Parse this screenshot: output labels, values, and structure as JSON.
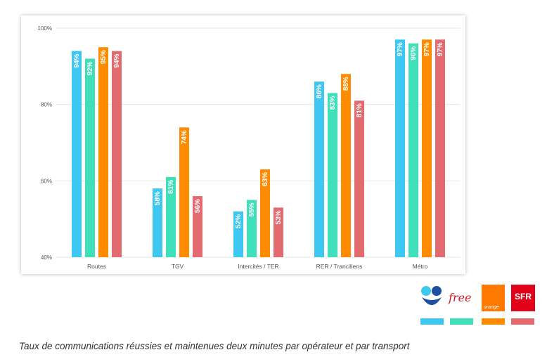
{
  "chart_data": {
    "type": "bar",
    "title": "",
    "xlabel": "",
    "ylabel": "",
    "categories": [
      "Routes",
      "TGV",
      "Intercités / TER",
      "RER / Tranciliens",
      "Métro"
    ],
    "series": [
      {
        "name": "",
        "values": [
          94,
          58,
          52,
          86,
          97
        ]
      },
      {
        "name": "",
        "values": [
          92,
          61,
          55,
          83,
          96
        ]
      },
      {
        "name": "",
        "values": [
          95,
          74,
          63,
          88,
          97
        ]
      },
      {
        "name": "",
        "values": [
          94,
          56,
          53,
          81,
          97
        ]
      }
    ],
    "ylim": [
      40,
      100
    ],
    "yticks": [
      40,
      60,
      80,
      100
    ],
    "ytick_labels": [
      "40%",
      "60%",
      "80%",
      "100%"
    ],
    "value_suffix": "%",
    "grid": true,
    "legend_position": "bottom-right"
  },
  "legend": {
    "logos": [
      {
        "label": "",
        "icon": "bouygues-logo-icon"
      },
      {
        "label": "free",
        "icon": "free-logo-icon"
      },
      {
        "label": "orange",
        "icon": "orange-logo-icon"
      },
      {
        "label": "SFR",
        "icon": "sfr-logo-icon"
      }
    ]
  },
  "colors": {
    "series": [
      "#3ec7f0",
      "#3fe0b9",
      "#ff8c00",
      "#e36a6f"
    ],
    "grid": "#e6e6e6",
    "axis_text": "#555555",
    "bar_label": "#ffffff"
  },
  "caption": "Taux de communications réussies et maintenues deux minutes par opérateur et par transport"
}
